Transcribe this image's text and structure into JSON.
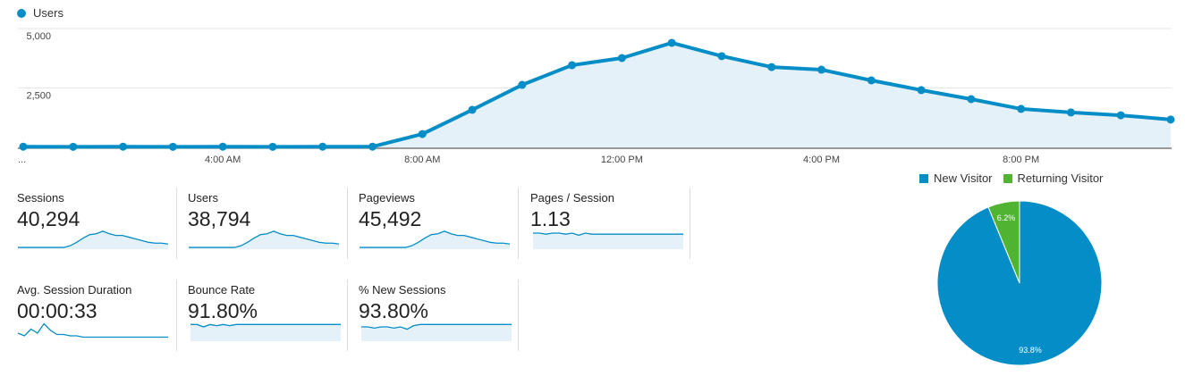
{
  "chart_data": [
    {
      "type": "area",
      "title": "",
      "legend": [
        "Users"
      ],
      "legend_position": "top-left",
      "xlabel": "",
      "ylabel": "",
      "x_tick_labels": [
        "...",
        "4:00 AM",
        "8:00 AM",
        "12:00 PM",
        "4:00 PM",
        "8:00 PM"
      ],
      "y_tick_labels": [
        "2,500",
        "5,000"
      ],
      "ylim": [
        0,
        5000
      ],
      "grid": true,
      "x": [
        0,
        1,
        2,
        3,
        4,
        5,
        6,
        7,
        8,
        9,
        10,
        11,
        12,
        13,
        14,
        15,
        16,
        17,
        18,
        19,
        20,
        21,
        22,
        23
      ],
      "series": [
        {
          "name": "Users",
          "color": "#058dc7",
          "values": [
            30,
            25,
            30,
            25,
            30,
            25,
            30,
            30,
            560,
            1580,
            2630,
            3460,
            3760,
            4400,
            3840,
            3380,
            3270,
            2820,
            2410,
            2030,
            1620,
            1470,
            1350,
            1170
          ]
        }
      ]
    },
    {
      "type": "pie",
      "legend": [
        "New Visitor",
        "Returning Visitor"
      ],
      "legend_position": "top",
      "slices": [
        {
          "name": "New Visitor",
          "value": 93.8,
          "label": "93.8%",
          "color": "#058dc7"
        },
        {
          "name": "Returning Visitor",
          "value": 6.2,
          "label": "6.2%",
          "color": "#50b432"
        }
      ]
    }
  ],
  "metrics": [
    {
      "label": "Sessions",
      "value": "40,294",
      "spark": [
        2,
        2,
        2,
        2,
        2,
        2,
        2,
        2,
        4,
        8,
        13,
        17,
        18,
        21,
        18,
        16,
        16,
        14,
        12,
        10,
        8,
        7,
        7,
        6
      ],
      "min": 0,
      "max": 25
    },
    {
      "label": "Users",
      "value": "38,794",
      "spark": [
        2,
        2,
        2,
        2,
        2,
        2,
        2,
        2,
        4,
        8,
        13,
        17,
        18,
        21,
        18,
        16,
        16,
        14,
        12,
        10,
        8,
        7,
        7,
        6
      ],
      "min": 0,
      "max": 25
    },
    {
      "label": "Pageviews",
      "value": "45,492",
      "spark": [
        2,
        2,
        2,
        2,
        2,
        2,
        2,
        2,
        4,
        8,
        13,
        17,
        18,
        21,
        18,
        16,
        16,
        14,
        12,
        10,
        8,
        7,
        7,
        6
      ],
      "min": 0,
      "max": 25
    },
    {
      "label": "Pages / Session",
      "value": "1.13",
      "spark": [
        15,
        15,
        14,
        15,
        15,
        14,
        15,
        13,
        15,
        14,
        14,
        14,
        14,
        14,
        14,
        14,
        14,
        14,
        14,
        14,
        14,
        14,
        14,
        14
      ],
      "min": 0,
      "max": 20
    },
    {
      "label": "Avg. Session Duration",
      "value": "00:00:33",
      "spark": [
        6,
        4,
        9,
        6,
        13,
        8,
        5,
        5,
        4,
        4,
        3,
        3,
        3,
        3,
        3,
        3,
        3,
        3,
        3,
        3,
        3,
        3,
        3,
        3
      ],
      "min": 0,
      "max": 16
    },
    {
      "label": "Bounce Rate",
      "value": "91.80%",
      "spark": [
        14,
        14,
        12,
        14,
        13,
        14,
        13,
        14,
        14,
        14,
        14,
        14,
        14,
        14,
        14,
        14,
        14,
        14,
        14,
        14,
        14,
        14,
        14,
        14
      ],
      "min": 0,
      "max": 18
    },
    {
      "label": "% New Sessions",
      "value": "93.80%",
      "spark": [
        12,
        12,
        11,
        12,
        12,
        11,
        12,
        10,
        13,
        14,
        14,
        14,
        14,
        14,
        14,
        14,
        14,
        14,
        14,
        14,
        14,
        14,
        14,
        14
      ],
      "min": 0,
      "max": 18
    }
  ],
  "colors": {
    "accent": "#058dc7",
    "fill": "#e5f1f8",
    "green": "#50b432"
  }
}
